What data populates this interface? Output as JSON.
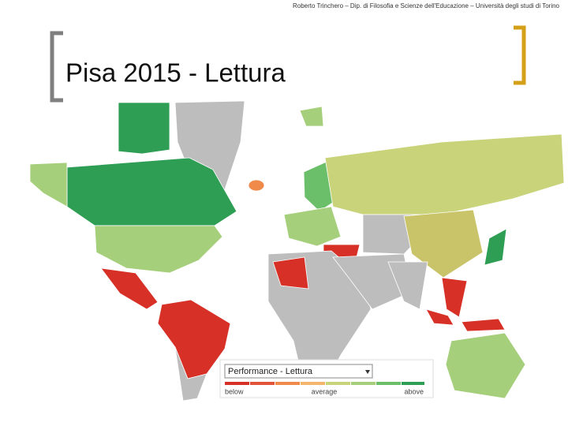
{
  "header": {
    "text": "Roberto Trinchero – Dip. di Filosofia e Scienze dell'Educazione – Università degli studi di Torino"
  },
  "title": "Pisa 2015 - Lettura",
  "legend": {
    "dropdown": "Performance - Lettura",
    "low": "below",
    "mid": "average",
    "high": "above"
  }
}
